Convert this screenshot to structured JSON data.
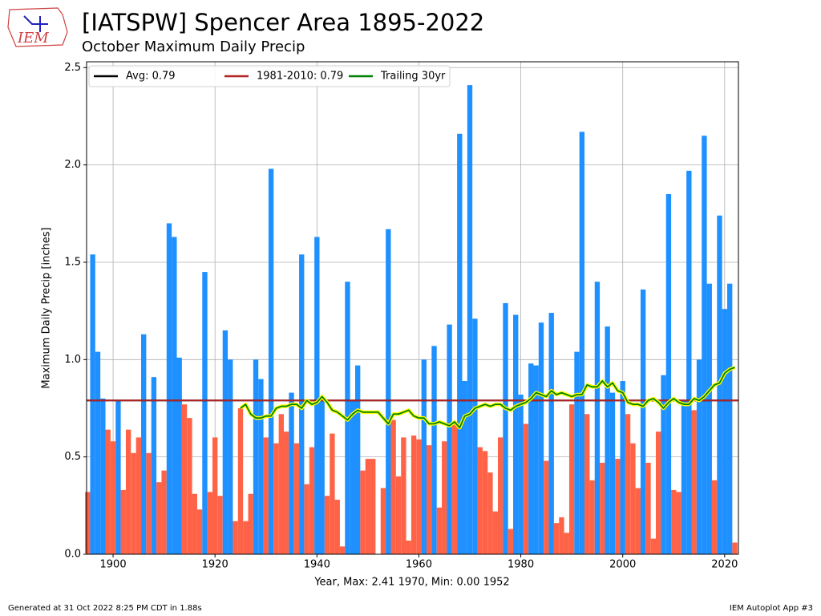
{
  "chart_data": {
    "type": "bar",
    "title": "[IATSPW] Spencer Area 1895-2022",
    "subtitle": "October Maximum Daily Precip",
    "xlabel": "Year, Max: 2.41 1970, Min: 0.00 1952",
    "ylabel": "Maximum Daily Precip [inches]",
    "logo": "IEM",
    "footer_left": "Generated at 31 Oct 2022 8:25 PM CDT in 1.88s",
    "footer_right": "IEM Autoplot App #3",
    "x": [
      1895,
      1896,
      1897,
      1898,
      1899,
      1900,
      1901,
      1902,
      1903,
      1904,
      1905,
      1906,
      1907,
      1908,
      1909,
      1910,
      1911,
      1912,
      1913,
      1914,
      1915,
      1916,
      1917,
      1918,
      1919,
      1920,
      1921,
      1922,
      1923,
      1924,
      1925,
      1926,
      1927,
      1928,
      1929,
      1930,
      1931,
      1932,
      1933,
      1934,
      1935,
      1936,
      1937,
      1938,
      1939,
      1940,
      1941,
      1942,
      1943,
      1944,
      1945,
      1946,
      1947,
      1948,
      1949,
      1950,
      1951,
      1952,
      1953,
      1954,
      1955,
      1956,
      1957,
      1958,
      1959,
      1960,
      1961,
      1962,
      1963,
      1964,
      1965,
      1966,
      1967,
      1968,
      1969,
      1970,
      1971,
      1972,
      1973,
      1974,
      1975,
      1976,
      1977,
      1978,
      1979,
      1980,
      1981,
      1982,
      1983,
      1984,
      1985,
      1986,
      1987,
      1988,
      1989,
      1990,
      1991,
      1992,
      1993,
      1994,
      1995,
      1996,
      1997,
      1998,
      1999,
      2000,
      2001,
      2002,
      2003,
      2004,
      2005,
      2006,
      2007,
      2008,
      2009,
      2010,
      2011,
      2012,
      2013,
      2014,
      2015,
      2016,
      2017,
      2018,
      2019,
      2020,
      2021,
      2022
    ],
    "values": [
      0.32,
      1.54,
      1.04,
      0.8,
      0.64,
      0.58,
      0.79,
      0.33,
      0.64,
      0.52,
      0.6,
      1.13,
      0.52,
      0.91,
      0.37,
      0.43,
      1.7,
      1.63,
      1.01,
      0.77,
      0.7,
      0.31,
      0.23,
      1.45,
      0.32,
      0.6,
      0.3,
      1.15,
      1.0,
      0.17,
      0.75,
      0.17,
      0.31,
      1.0,
      0.9,
      0.6,
      1.98,
      0.57,
      0.72,
      0.63,
      0.83,
      0.57,
      1.54,
      0.36,
      0.55,
      1.63,
      0.79,
      0.3,
      0.62,
      0.28,
      0.04,
      1.4,
      0.79,
      0.97,
      0.43,
      0.49,
      0.49,
      0.0,
      0.34,
      1.67,
      0.69,
      0.4,
      0.6,
      0.07,
      0.61,
      0.59,
      1.0,
      0.56,
      1.07,
      0.24,
      0.58,
      1.18,
      0.68,
      2.16,
      0.89,
      2.41,
      1.21,
      0.55,
      0.53,
      0.42,
      0.22,
      0.6,
      1.29,
      0.13,
      1.23,
      0.82,
      0.67,
      0.98,
      0.97,
      1.19,
      0.48,
      1.24,
      0.16,
      0.19,
      0.11,
      0.77,
      1.04,
      2.17,
      0.72,
      0.38,
      1.4,
      0.47,
      1.17,
      0.83,
      0.49,
      0.89,
      0.72,
      0.57,
      0.34,
      1.36,
      0.47,
      0.08,
      0.63,
      0.92,
      1.85,
      0.33,
      0.32,
      0.79,
      1.97,
      0.74,
      1.0,
      2.15,
      1.39,
      0.38,
      1.74,
      1.26,
      1.39,
      0.06
    ],
    "above_color": "#1e90ff",
    "below_color": "#ff6347",
    "reference_lines": [
      {
        "name": "Avg: 0.79",
        "value": 0.79,
        "color": "#000000"
      },
      {
        "name": "1981-2010: 0.79",
        "value": 0.79,
        "color": "#b22222"
      }
    ],
    "series": [
      {
        "name": "Trailing 30yr",
        "color": "#008000",
        "outline": "#ffff00",
        "values": [
          null,
          null,
          null,
          null,
          null,
          null,
          null,
          null,
          null,
          null,
          null,
          null,
          null,
          null,
          null,
          null,
          null,
          null,
          null,
          null,
          null,
          null,
          null,
          null,
          null,
          null,
          null,
          null,
          null,
          null,
          0.75,
          0.77,
          0.72,
          0.7,
          0.7,
          0.71,
          0.71,
          0.75,
          0.76,
          0.76,
          0.77,
          0.77,
          0.75,
          0.79,
          0.77,
          0.78,
          0.81,
          0.78,
          0.74,
          0.73,
          0.71,
          0.69,
          0.72,
          0.74,
          0.73,
          0.73,
          0.73,
          0.73,
          0.7,
          0.67,
          0.72,
          0.72,
          0.73,
          0.74,
          0.71,
          0.7,
          0.7,
          0.67,
          0.67,
          0.68,
          0.67,
          0.66,
          0.68,
          0.65,
          0.71,
          0.72,
          0.75,
          0.76,
          0.77,
          0.76,
          0.77,
          0.77,
          0.75,
          0.74,
          0.76,
          0.77,
          0.78,
          0.8,
          0.83,
          0.82,
          0.81,
          0.84,
          0.82,
          0.83,
          0.82,
          0.81,
          0.82,
          0.82,
          0.87,
          0.86,
          0.86,
          0.89,
          0.86,
          0.88,
          0.84,
          0.83,
          0.78,
          0.77,
          0.77,
          0.76,
          0.79,
          0.8,
          0.78,
          0.75,
          0.78,
          0.8,
          0.78,
          0.77,
          0.77,
          0.8,
          0.79,
          0.81,
          0.84,
          0.87,
          0.88,
          0.93,
          0.95,
          0.96
        ]
      }
    ],
    "xlim": [
      1894.8,
      2022.7
    ],
    "ylim": [
      0,
      2.53
    ],
    "xticks": [
      1900,
      1920,
      1940,
      1960,
      1980,
      2000,
      2020
    ],
    "yticks": [
      {
        "value": 0,
        "label": "0.0"
      },
      {
        "value": 0.5,
        "label": "0.5"
      },
      {
        "value": 1,
        "label": "1.0"
      },
      {
        "value": 1.5,
        "label": "1.5"
      },
      {
        "value": 2,
        "label": "2.0"
      },
      {
        "value": 2.5,
        "label": "2.5"
      }
    ],
    "grid": true,
    "legend": "upper left"
  }
}
